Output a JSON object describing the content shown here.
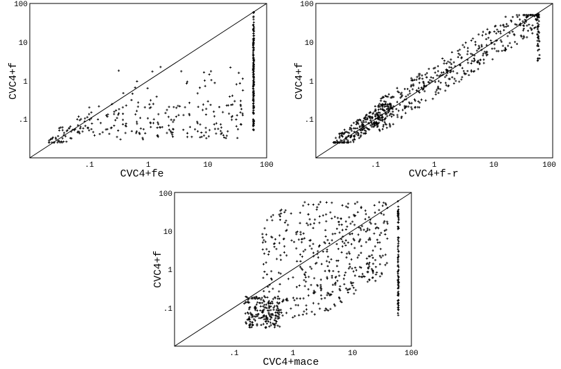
{
  "chart_data": [
    {
      "type": "scatter",
      "xlabel": "CVC4+fe",
      "ylabel": "CVC4+f",
      "scale": "log",
      "xlim": [
        0.01,
        100
      ],
      "ylim": [
        0.01,
        100
      ],
      "x_tick_labels": [
        ".1",
        "1",
        "10",
        "100"
      ],
      "y_tick_labels": [
        ".1",
        "1",
        "10",
        "100"
      ],
      "diagonal": true,
      "clusters": [
        {
          "x": [
            0.02,
            0.1
          ],
          "y": [
            0.025,
            0.2
          ],
          "n": 60,
          "kind": "diag",
          "seed": 11
        },
        {
          "x": [
            0.1,
            40
          ],
          "y": [
            0.03,
            0.25
          ],
          "n": 170,
          "kind": "box",
          "seed": 12
        },
        {
          "x": [
            0.3,
            40
          ],
          "y": [
            0.2,
            2.5
          ],
          "n": 40,
          "kind": "box",
          "seed": 13
        },
        {
          "x": [
            60,
            60
          ],
          "y": [
            0.05,
            60
          ],
          "n": 150,
          "kind": "vline",
          "seed": 14
        }
      ]
    },
    {
      "type": "scatter",
      "xlabel": "CVC4+f-r",
      "ylabel": "CVC4+f",
      "scale": "log",
      "xlim": [
        0.01,
        100
      ],
      "ylim": [
        0.01,
        100
      ],
      "x_tick_labels": [
        ".1",
        "1",
        "10",
        "100"
      ],
      "y_tick_labels": [
        ".1",
        "1",
        "10",
        "100"
      ],
      "diagonal": true,
      "clusters": [
        {
          "x": [
            0.02,
            0.2
          ],
          "y": [
            0.025,
            0.25
          ],
          "n": 260,
          "kind": "diag",
          "seed": 21
        },
        {
          "x": [
            0.1,
            60
          ],
          "y": [
            0.05,
            50
          ],
          "n": 420,
          "kind": "band",
          "seed": 22
        },
        {
          "x": [
            55,
            60
          ],
          "y": [
            3,
            60
          ],
          "n": 40,
          "kind": "box",
          "seed": 23
        }
      ]
    },
    {
      "type": "scatter",
      "xlabel": "CVC4+mace",
      "ylabel": "CVC4+f",
      "scale": "log",
      "xlim": [
        0.01,
        100
      ],
      "ylim": [
        0.01,
        100
      ],
      "x_tick_labels": [
        ".1",
        "1",
        "10",
        "100"
      ],
      "y_tick_labels": [
        ".1",
        "1",
        "10",
        "100"
      ],
      "diagonal": true,
      "clusters": [
        {
          "x": [
            0.15,
            0.6
          ],
          "y": [
            0.03,
            0.2
          ],
          "n": 180,
          "kind": "box",
          "seed": 31
        },
        {
          "x": [
            0.3,
            40
          ],
          "y": [
            0.05,
            60
          ],
          "n": 450,
          "kind": "upper",
          "seed": 32
        },
        {
          "x": [
            60,
            60
          ],
          "y": [
            0.06,
            60
          ],
          "n": 90,
          "kind": "vline",
          "seed": 33
        }
      ]
    }
  ]
}
